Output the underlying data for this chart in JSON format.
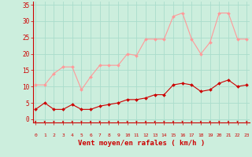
{
  "x": [
    0,
    1,
    2,
    3,
    4,
    5,
    6,
    7,
    8,
    9,
    10,
    11,
    12,
    13,
    14,
    15,
    16,
    17,
    18,
    19,
    20,
    21,
    22,
    23
  ],
  "wind_avg": [
    3,
    5,
    3,
    3,
    4.5,
    3,
    3,
    4,
    4.5,
    5,
    6,
    6,
    6.5,
    7.5,
    7.5,
    10.5,
    11,
    10.5,
    8.5,
    9,
    11,
    12,
    10,
    10.5
  ],
  "wind_gust": [
    10.5,
    10.5,
    14,
    16,
    16,
    9,
    13,
    16.5,
    16.5,
    16.5,
    20,
    19.5,
    24.5,
    24.5,
    24.5,
    31.5,
    32.5,
    24.5,
    20,
    23.5,
    32.5,
    32.5,
    24.5,
    24.5
  ],
  "avg_color": "#cc0000",
  "gust_color": "#ff9999",
  "bg_color": "#cceedd",
  "grid_color": "#aaddcc",
  "xlabel": "Vent moyen/en rafales ( km/h )",
  "yticks": [
    0,
    5,
    10,
    15,
    20,
    25,
    30,
    35
  ],
  "xlim": [
    -0.3,
    23.3
  ],
  "ylim": [
    -1,
    36
  ],
  "tick_labels": [
    "0",
    "1",
    "2",
    "3",
    "4",
    "5",
    "6",
    "7",
    "8",
    "9",
    "10",
    "11",
    "12",
    "13",
    "14",
    "15",
    "16",
    "17",
    "18",
    "19",
    "20",
    "21",
    "22",
    "23"
  ]
}
